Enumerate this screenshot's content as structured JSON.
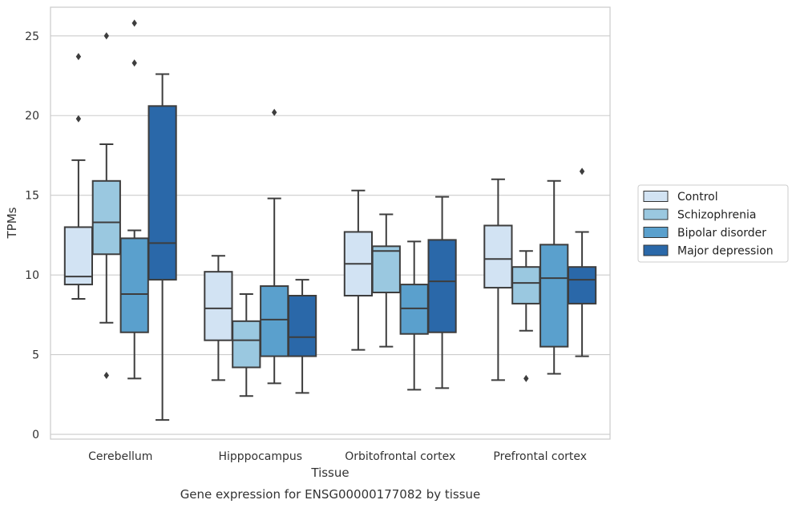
{
  "chart_data": {
    "type": "box",
    "caption": "Gene expression for ENSG00000177082 by tissue",
    "xlabel": "Tissue",
    "ylabel": "TPMs",
    "ylim": [
      -0.3,
      26.8
    ],
    "yticks": [
      0,
      5,
      10,
      15,
      20,
      25
    ],
    "grid": true,
    "legend_position": "right",
    "categories": [
      "Cerebellum",
      "Hipppocampus",
      "Orbitofrontal cortex",
      "Prefrontal cortex"
    ],
    "series": [
      {
        "name": "Control",
        "color": "#d2e3f3",
        "boxes": [
          {
            "whislo": 8.5,
            "q1": 9.4,
            "med": 9.9,
            "q3": 13.0,
            "whishi": 17.2,
            "fliers": [
              19.8,
              23.7
            ]
          },
          {
            "whislo": 3.4,
            "q1": 5.9,
            "med": 7.9,
            "q3": 10.2,
            "whishi": 11.2,
            "fliers": []
          },
          {
            "whislo": 5.3,
            "q1": 8.7,
            "med": 10.7,
            "q3": 12.7,
            "whishi": 15.3,
            "fliers": []
          },
          {
            "whislo": 3.4,
            "q1": 9.2,
            "med": 11.0,
            "q3": 13.1,
            "whishi": 16.0,
            "fliers": []
          }
        ]
      },
      {
        "name": "Schizophrenia",
        "color": "#9ac8e0",
        "boxes": [
          {
            "whislo": 7.0,
            "q1": 11.3,
            "med": 13.3,
            "q3": 15.9,
            "whishi": 18.2,
            "fliers": [
              3.7,
              25.0
            ]
          },
          {
            "whislo": 2.4,
            "q1": 4.2,
            "med": 5.9,
            "q3": 7.1,
            "whishi": 8.8,
            "fliers": []
          },
          {
            "whislo": 5.5,
            "q1": 8.9,
            "med": 11.5,
            "q3": 11.8,
            "whishi": 13.8,
            "fliers": []
          },
          {
            "whislo": 6.5,
            "q1": 8.2,
            "med": 9.5,
            "q3": 10.5,
            "whishi": 11.5,
            "fliers": [
              3.5
            ]
          }
        ]
      },
      {
        "name": "Bipolar disorder",
        "color": "#5aa0cd",
        "boxes": [
          {
            "whislo": 3.5,
            "q1": 6.4,
            "med": 8.8,
            "q3": 12.3,
            "whishi": 12.8,
            "fliers": [
              23.3,
              25.8
            ]
          },
          {
            "whislo": 3.2,
            "q1": 4.9,
            "med": 7.2,
            "q3": 9.3,
            "whishi": 14.8,
            "fliers": [
              20.2
            ]
          },
          {
            "whislo": 2.8,
            "q1": 6.3,
            "med": 7.9,
            "q3": 9.4,
            "whishi": 12.1,
            "fliers": []
          },
          {
            "whislo": 3.8,
            "q1": 5.5,
            "med": 9.8,
            "q3": 11.9,
            "whishi": 15.9,
            "fliers": []
          }
        ]
      },
      {
        "name": "Major depression",
        "color": "#2a68a9",
        "boxes": [
          {
            "whislo": 0.9,
            "q1": 9.7,
            "med": 12.0,
            "q3": 20.6,
            "whishi": 22.6,
            "fliers": []
          },
          {
            "whislo": 2.6,
            "q1": 4.9,
            "med": 6.1,
            "q3": 8.7,
            "whishi": 9.7,
            "fliers": []
          },
          {
            "whislo": 2.9,
            "q1": 6.4,
            "med": 9.6,
            "q3": 12.2,
            "whishi": 14.9,
            "fliers": []
          },
          {
            "whislo": 4.9,
            "q1": 8.2,
            "med": 9.7,
            "q3": 10.5,
            "whishi": 12.7,
            "fliers": [
              16.5
            ]
          }
        ]
      }
    ]
  }
}
